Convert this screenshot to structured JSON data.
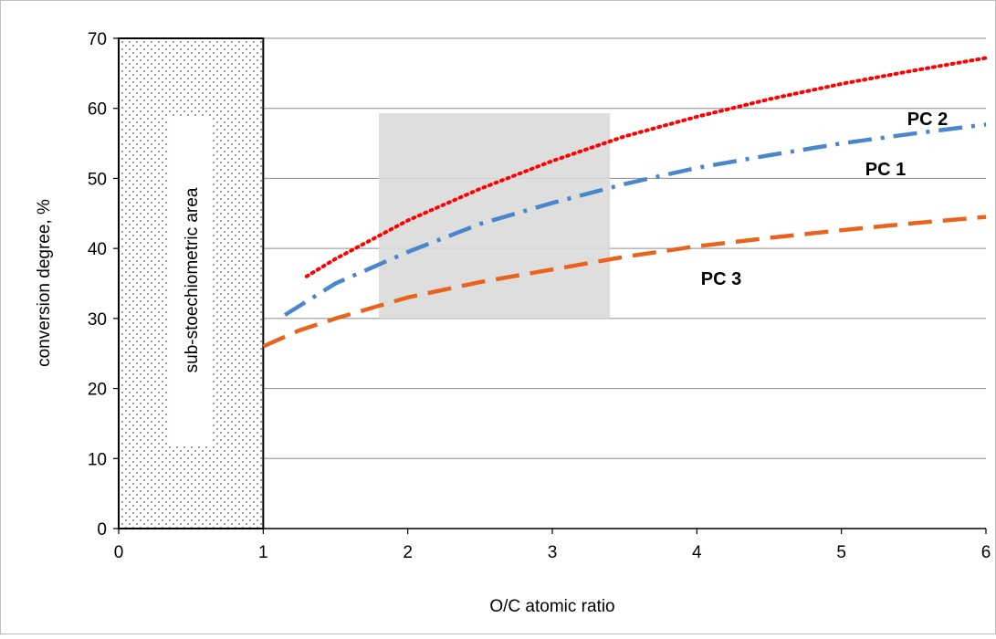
{
  "chart_data": {
    "type": "line",
    "xlabel": "O/C atomic ratio",
    "ylabel": "conversion degree, %",
    "xlim": [
      0,
      6
    ],
    "ylim": [
      0,
      70
    ],
    "x_ticks": [
      "0",
      "1",
      "2",
      "3",
      "4",
      "5",
      "6"
    ],
    "y_ticks": [
      "0",
      "10",
      "20",
      "30",
      "40",
      "50",
      "60",
      "70"
    ],
    "grid": "horizontal",
    "series": [
      {
        "name": "PC 2",
        "color": "#ff0000",
        "line_style": "dotted",
        "x": [
          1.3,
          1.5,
          2.0,
          2.5,
          3.0,
          3.5,
          4.0,
          4.5,
          5.0,
          5.5,
          6.0
        ],
        "y": [
          36,
          38.5,
          44,
          48.5,
          52.5,
          56,
          58.8,
          61.3,
          63.5,
          65.4,
          67.2
        ]
      },
      {
        "name": "PC 1",
        "color": "#4a86cc",
        "line_style": "dash-dot",
        "x": [
          1.15,
          1.5,
          2.0,
          2.5,
          3.0,
          3.5,
          4.0,
          4.5,
          5.0,
          5.5,
          6.0
        ],
        "y": [
          30.5,
          35,
          39.5,
          43.5,
          46.5,
          49.2,
          51.5,
          53.3,
          55,
          56.4,
          57.7
        ]
      },
      {
        "name": "PC 3",
        "color": "#e8641e",
        "line_style": "dashed",
        "x": [
          1.0,
          1.25,
          1.5,
          2.0,
          2.5,
          3.0,
          3.5,
          4.0,
          4.5,
          5.0,
          5.5,
          6.0
        ],
        "y": [
          26,
          28.3,
          30,
          33,
          35.2,
          37,
          38.8,
          40.3,
          41.5,
          42.6,
          43.6,
          44.5
        ]
      }
    ],
    "regions": [
      {
        "label": "sub-stoechiometric area",
        "x_range": [
          0,
          1
        ],
        "y_range": [
          0,
          70
        ],
        "fill": "dotted-pattern"
      },
      {
        "label": "",
        "x_range": [
          1.8,
          3.4
        ],
        "y_range": [
          30,
          59.3
        ],
        "fill": "#d9d9d9"
      }
    ]
  }
}
